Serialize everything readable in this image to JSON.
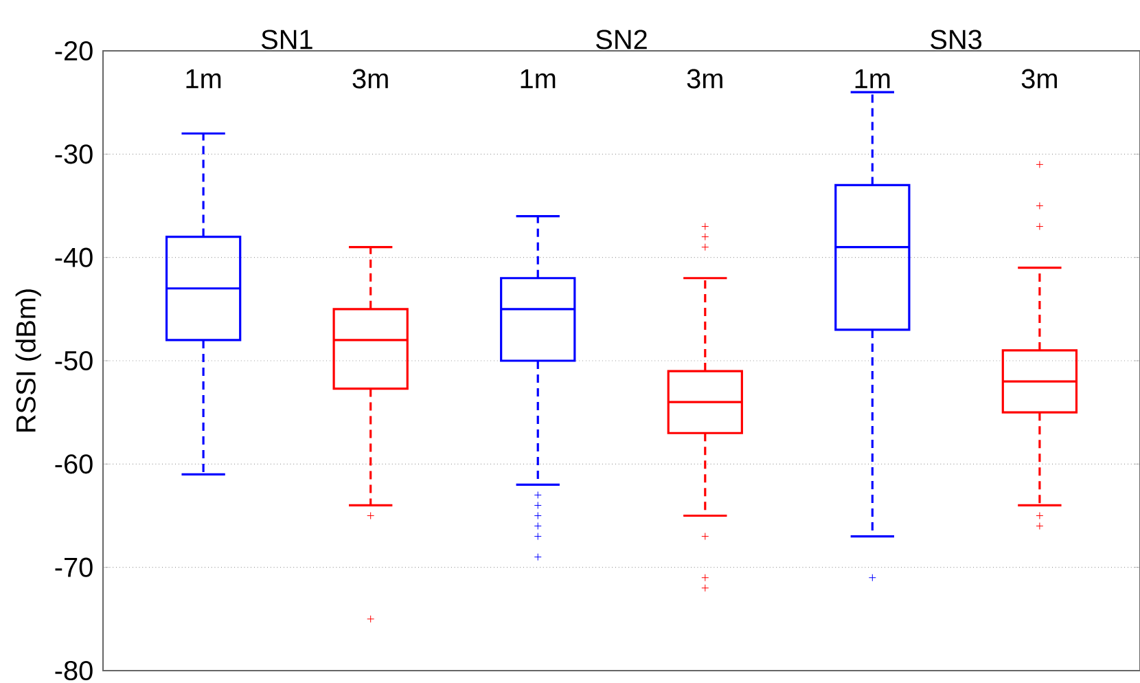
{
  "chart_data": {
    "type": "box",
    "ylabel": "RSSI (dBm)",
    "categories": [
      "1m",
      "3m",
      "1m",
      "3m",
      "1m",
      "3m"
    ],
    "colors": [
      "#0000ff",
      "#ff0000",
      "#0000ff",
      "#ff0000",
      "#0000ff",
      "#ff0000"
    ],
    "boxes": [
      {
        "low": -61,
        "q1": -48,
        "median": -43,
        "q3": -38,
        "high": -28
      },
      {
        "low": -64,
        "q1": -52.7,
        "median": -48,
        "q3": -45,
        "high": -39,
        "outliers": [
          -65,
          -75
        ]
      },
      {
        "low": -62,
        "q1": -50,
        "median": -45,
        "q3": -42,
        "high": -36,
        "outliers": [
          -63,
          -64,
          -65,
          -66,
          -67,
          -69
        ]
      },
      {
        "low": -65,
        "q1": -57,
        "median": -54,
        "q3": -51,
        "high": -42,
        "outliers": [
          -37,
          -38,
          -39,
          -67,
          -71,
          -72
        ]
      },
      {
        "low": -67,
        "q1": -47,
        "median": -39,
        "q3": -33,
        "high": -24,
        "outliers": [
          -71
        ]
      },
      {
        "low": -64,
        "q1": -55,
        "median": -52,
        "q3": -49,
        "high": -41,
        "outliers": [
          -31,
          -35,
          -37,
          -65,
          -66
        ]
      }
    ],
    "annotations": [
      "SN1",
      "SN2",
      "SN3"
    ],
    "ylim": [
      -80,
      -20
    ],
    "yticks": [
      -80,
      -70,
      -60,
      -50,
      -40,
      -30,
      -20
    ],
    "grid": "y"
  }
}
